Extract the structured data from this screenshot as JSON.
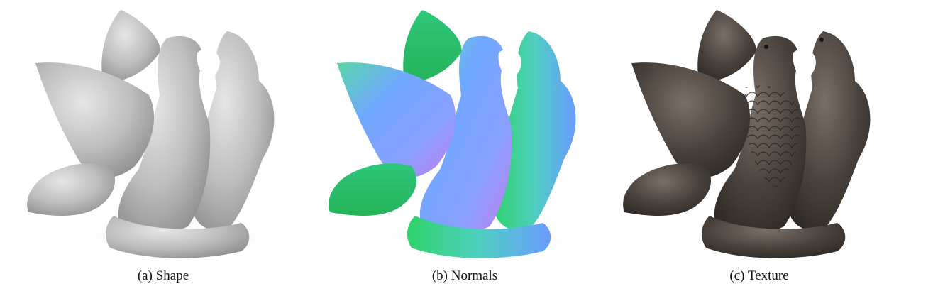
{
  "figure": {
    "panels": [
      {
        "caption": "(a) Shape",
        "rendering": "shape",
        "icon": "doves-sculpture-grey-shaded"
      },
      {
        "caption": "(b) Normals",
        "rendering": "normals",
        "icon": "doves-sculpture-normal-map"
      },
      {
        "caption": "(c) Texture",
        "rendering": "texture",
        "icon": "doves-sculpture-textured"
      }
    ]
  }
}
